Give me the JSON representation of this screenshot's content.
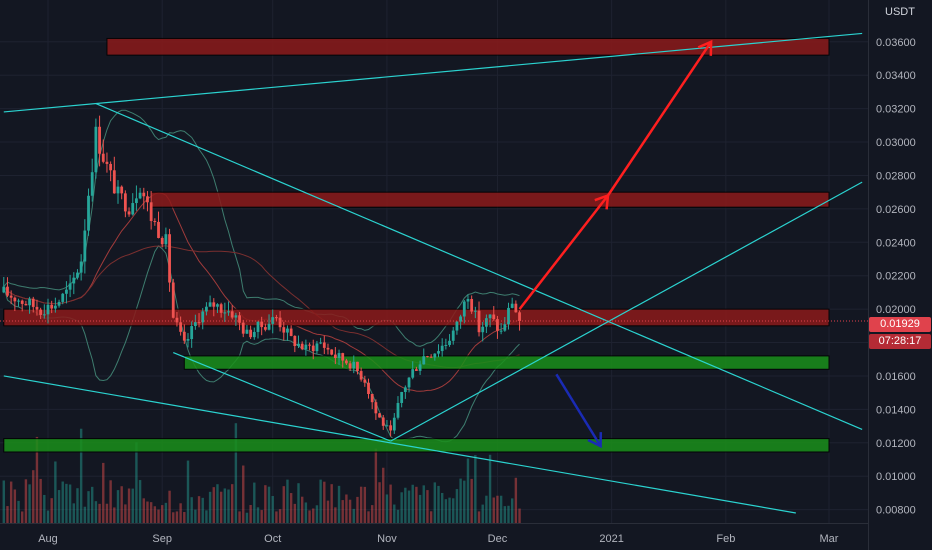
{
  "currency_label": "USDT",
  "colors": {
    "background": "#131722",
    "up_candle": "#26a69a",
    "down_candle": "#ef5350",
    "cyan_trendline": "#2bd3d0",
    "resistance_zone": "#8b1a1a",
    "support_zone": "#1a8f1a",
    "projection_red": "#ff1f1f",
    "projection_blue": "#1a2bb5",
    "last_price_tag": "#e0424c"
  },
  "price_tags": {
    "last_price": "0.01929",
    "countdown": "07:28:17"
  },
  "chart_data": {
    "type": "candlestick",
    "title": "",
    "y_axis": {
      "ticks": [
        "0.03600",
        "0.03400",
        "0.03200",
        "0.03000",
        "0.02800",
        "0.02600",
        "0.02400",
        "0.02200",
        "0.02000",
        "0.01800",
        "0.01600",
        "0.01400",
        "0.01200",
        "0.01000",
        "0.00800"
      ],
      "range": [
        0.0072,
        0.0385
      ]
    },
    "x_axis": {
      "ticks": [
        "Aug",
        "Sep",
        "Oct",
        "Nov",
        "Dec",
        "2021",
        "Feb",
        "Mar"
      ]
    },
    "last_price": 0.01929,
    "price_series": {
      "name": "",
      "points": [
        {
          "d": "Jul 20",
          "p": 0.021
        },
        {
          "d": "Jul 25",
          "p": 0.0205
        },
        {
          "d": "Jul 30",
          "p": 0.02
        },
        {
          "d": "Aug 3",
          "p": 0.0203
        },
        {
          "d": "Aug 7",
          "p": 0.0212
        },
        {
          "d": "Aug 10",
          "p": 0.023
        },
        {
          "d": "Aug 12",
          "p": 0.027
        },
        {
          "d": "Aug 14",
          "p": 0.0305
        },
        {
          "d": "Aug 17",
          "p": 0.0285
        },
        {
          "d": "Aug 20",
          "p": 0.0268
        },
        {
          "d": "Aug 23",
          "p": 0.0262
        },
        {
          "d": "Aug 26",
          "p": 0.0275
        },
        {
          "d": "Aug 29",
          "p": 0.0255
        },
        {
          "d": "Sep 2",
          "p": 0.024
        },
        {
          "d": "Sep 4",
          "p": 0.0195
        },
        {
          "d": "Sep 7",
          "p": 0.0178
        },
        {
          "d": "Sep 11",
          "p": 0.0196
        },
        {
          "d": "Sep 15",
          "p": 0.0203
        },
        {
          "d": "Sep 20",
          "p": 0.0198
        },
        {
          "d": "Sep 24",
          "p": 0.0185
        },
        {
          "d": "Sep 28",
          "p": 0.019
        },
        {
          "d": "Oct 2",
          "p": 0.0195
        },
        {
          "d": "Oct 6",
          "p": 0.0182
        },
        {
          "d": "Oct 10",
          "p": 0.0176
        },
        {
          "d": "Oct 14",
          "p": 0.018
        },
        {
          "d": "Oct 18",
          "p": 0.0172
        },
        {
          "d": "Oct 22",
          "p": 0.0168
        },
        {
          "d": "Oct 26",
          "p": 0.0158
        },
        {
          "d": "Oct 29",
          "p": 0.0138
        },
        {
          "d": "Nov 2",
          "p": 0.0125
        },
        {
          "d": "Nov 5",
          "p": 0.015
        },
        {
          "d": "Nov 8",
          "p": 0.0163
        },
        {
          "d": "Nov 11",
          "p": 0.0172
        },
        {
          "d": "Nov 14",
          "p": 0.0175
        },
        {
          "d": "Nov 17",
          "p": 0.018
        },
        {
          "d": "Nov 20",
          "p": 0.019
        },
        {
          "d": "Nov 23",
          "p": 0.021
        },
        {
          "d": "Nov 26",
          "p": 0.0188
        },
        {
          "d": "Nov 29",
          "p": 0.0195
        },
        {
          "d": "Dec 2",
          "p": 0.0186
        },
        {
          "d": "Dec 5",
          "p": 0.0205
        },
        {
          "d": "Dec 7",
          "p": 0.01929
        }
      ]
    },
    "zones": [
      {
        "kind": "resistance",
        "from": "Aug 17",
        "to": "Mar 1",
        "low": 0.0352,
        "high": 0.0362
      },
      {
        "kind": "resistance",
        "from": "Aug 29",
        "to": "Mar 1",
        "low": 0.0261,
        "high": 0.027
      },
      {
        "kind": "resistance",
        "from": "Jul 20",
        "to": "Mar 1",
        "low": 0.019,
        "high": 0.02
      },
      {
        "kind": "support",
        "from": "Sep 7",
        "to": "Mar 1",
        "low": 0.0164,
        "high": 0.0172
      },
      {
        "kind": "support",
        "from": "Jul 20",
        "to": "Mar 1",
        "low": 0.01145,
        "high": 0.01225
      }
    ],
    "trendlines": [
      {
        "from": {
          "d": "Jul 20",
          "p": 0.0318
        },
        "to": {
          "d": "Mar 10",
          "p": 0.0365
        }
      },
      {
        "from": {
          "d": "Aug 14",
          "p": 0.0323
        },
        "to": {
          "d": "Mar 10",
          "p": 0.0128
        }
      },
      {
        "from": {
          "d": "Sep 4",
          "p": 0.0174
        },
        "to": {
          "d": "Nov 2",
          "p": 0.0121
        }
      },
      {
        "from": {
          "d": "Nov 2",
          "p": 0.0121
        },
        "to": {
          "d": "Mar 10",
          "p": 0.0276
        }
      },
      {
        "from": {
          "d": "Jul 20",
          "p": 0.016
        },
        "to": {
          "d": "Feb 20",
          "p": 0.0078
        }
      }
    ],
    "projections": [
      {
        "color": "red",
        "from": {
          "d": "Dec 7",
          "p": 0.02
        },
        "to": {
          "d": "Dec 31",
          "p": 0.0268
        }
      },
      {
        "color": "red",
        "from": {
          "d": "Dec 31",
          "p": 0.0268
        },
        "to": {
          "d": "Jan 28",
          "p": 0.036
        }
      },
      {
        "color": "blue",
        "from": {
          "d": "Dec 17",
          "p": 0.0161
        },
        "to": {
          "d": "Dec 29",
          "p": 0.0118
        }
      }
    ]
  }
}
